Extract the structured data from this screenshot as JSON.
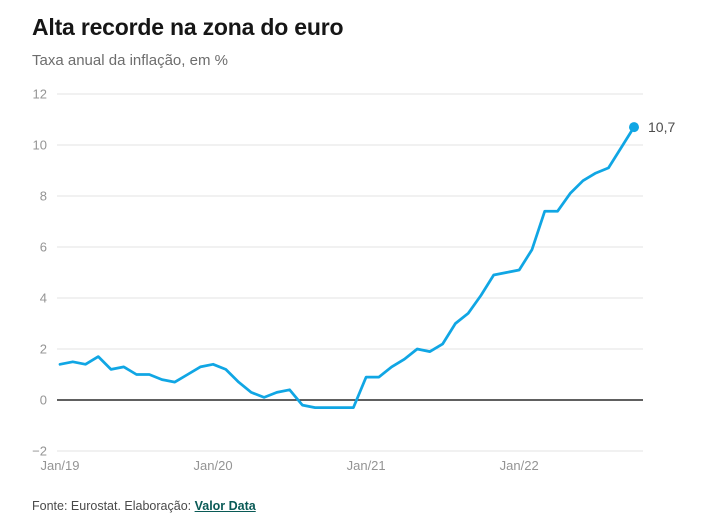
{
  "chart_data": {
    "type": "line",
    "title": "Alta recorde na zona do euro",
    "subtitle": "Taxa anual da inflação, em %",
    "x_unit": "month",
    "x": [
      "2019-01",
      "2019-02",
      "2019-03",
      "2019-04",
      "2019-05",
      "2019-06",
      "2019-07",
      "2019-08",
      "2019-09",
      "2019-10",
      "2019-11",
      "2019-12",
      "2020-01",
      "2020-02",
      "2020-03",
      "2020-04",
      "2020-05",
      "2020-06",
      "2020-07",
      "2020-08",
      "2020-09",
      "2020-10",
      "2020-11",
      "2020-12",
      "2021-01",
      "2021-02",
      "2021-03",
      "2021-04",
      "2021-05",
      "2021-06",
      "2021-07",
      "2021-08",
      "2021-09",
      "2021-10",
      "2021-11",
      "2021-12",
      "2022-01",
      "2022-02",
      "2022-03",
      "2022-04",
      "2022-05",
      "2022-06",
      "2022-07",
      "2022-08",
      "2022-09",
      "2022-10"
    ],
    "values": [
      1.4,
      1.5,
      1.4,
      1.7,
      1.2,
      1.3,
      1.0,
      1.0,
      0.8,
      0.7,
      1.0,
      1.3,
      1.4,
      1.2,
      0.7,
      0.3,
      0.1,
      0.3,
      0.4,
      -0.2,
      -0.3,
      -0.3,
      -0.3,
      -0.3,
      0.9,
      0.9,
      1.3,
      1.6,
      2.0,
      1.9,
      2.2,
      3.0,
      3.4,
      4.1,
      4.9,
      5.0,
      5.1,
      5.9,
      7.4,
      7.4,
      8.1,
      8.6,
      8.9,
      9.1,
      9.9,
      10.7
    ],
    "ylim": [
      -2,
      12
    ],
    "yticks": [
      {
        "value": 12,
        "label": "12"
      },
      {
        "value": 10,
        "label": "10"
      },
      {
        "value": 8,
        "label": "8"
      },
      {
        "value": 6,
        "label": "6"
      },
      {
        "value": 4,
        "label": "4"
      },
      {
        "value": 2,
        "label": "2"
      },
      {
        "value": 0,
        "label": "0"
      },
      {
        "value": -2,
        "label": "−2"
      }
    ],
    "xticks": [
      {
        "month_index": 0,
        "label": "Jan/19"
      },
      {
        "month_index": 12,
        "label": "Jan/20"
      },
      {
        "month_index": 24,
        "label": "Jan/21"
      },
      {
        "month_index": 36,
        "label": "Jan/22"
      }
    ],
    "end_label": "10,7",
    "grid": true,
    "line_color": "#10a6e4",
    "grid_color": "#e3e3e3",
    "zero_line_color": "#2b2b2b",
    "tick_label_color": "#949494",
    "end_label_color": "#4c4c4c"
  },
  "footer": {
    "source_prefix": "Fonte: Eurostat. Elaboração: ",
    "source_link": "Valor Data",
    "link_color": "#095a56"
  }
}
